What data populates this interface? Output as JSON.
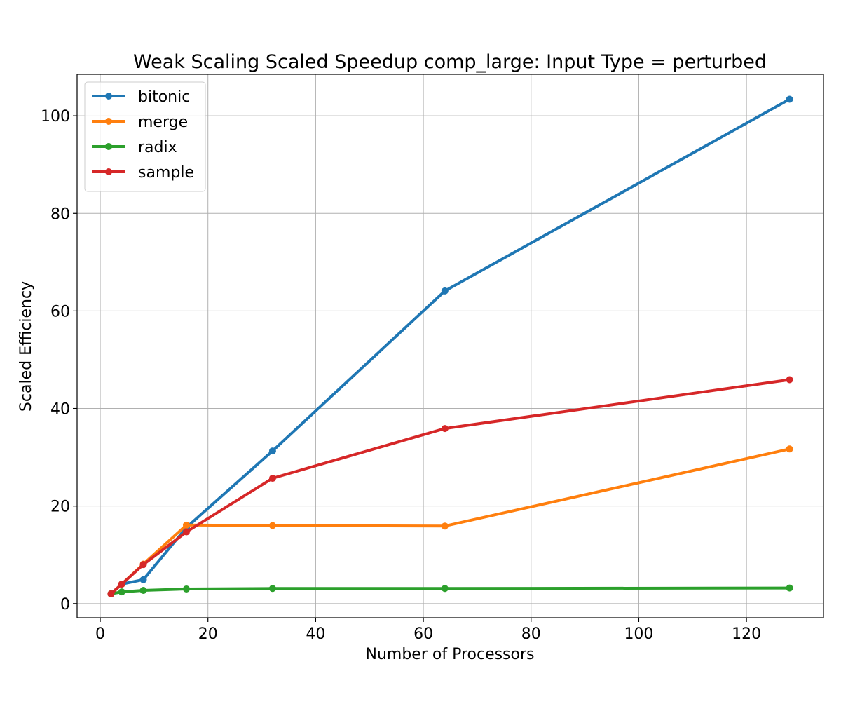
{
  "chart_data": {
    "type": "line",
    "title": "Weak Scaling Scaled Speedup comp_large: Input Type = perturbed",
    "xlabel": "Number of Processors",
    "ylabel": "Scaled Efficiency",
    "xlim": [
      -4.3,
      134.3
    ],
    "ylim": [
      -2.9,
      108.5
    ],
    "x_ticks": [
      0,
      20,
      40,
      60,
      80,
      100,
      120
    ],
    "y_ticks": [
      0,
      20,
      40,
      60,
      80,
      100
    ],
    "grid": true,
    "legend_position": "top-left",
    "x": [
      2,
      4,
      8,
      16,
      32,
      64,
      128
    ],
    "series": [
      {
        "name": "bitonic",
        "color": "#1f77b4",
        "values": [
          2.0,
          4.0,
          4.9,
          15.6,
          31.3,
          64.1,
          103.4
        ]
      },
      {
        "name": "merge",
        "color": "#ff7f0e",
        "values": [
          2.0,
          4.0,
          8.1,
          16.1,
          16.0,
          15.9,
          31.7
        ]
      },
      {
        "name": "radix",
        "color": "#2ca02c",
        "values": [
          2.0,
          2.4,
          2.7,
          3.0,
          3.1,
          3.1,
          3.2
        ]
      },
      {
        "name": "sample",
        "color": "#d62728",
        "values": [
          2.0,
          4.0,
          8.0,
          14.7,
          25.7,
          35.9,
          45.9
        ]
      }
    ]
  }
}
